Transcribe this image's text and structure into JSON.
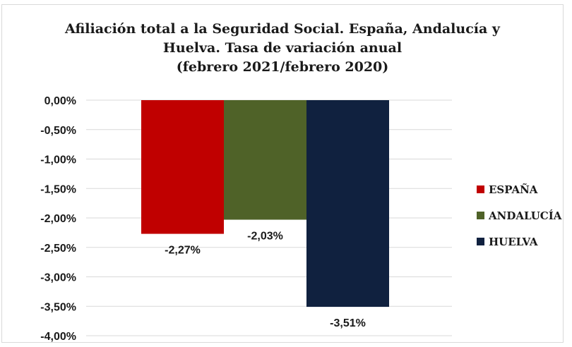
{
  "chart_data": {
    "type": "bar",
    "title_lines": [
      "Afiliación total a la Seguridad Social. España, Andalucía y",
      "Huelva. Tasa de variación anual",
      "(febrero 2021/febrero 2020)"
    ],
    "series": [
      {
        "name": "ESPAÑA",
        "value": -2.27,
        "label": "-2,27%",
        "color": "#c00000"
      },
      {
        "name": "ANDALUCÍA",
        "value": -2.03,
        "label": "-2,03%",
        "color": "#4f6228"
      },
      {
        "name": "HUELVA",
        "value": -3.51,
        "label": "-3,51%",
        "color": "#10213f"
      }
    ],
    "ylim": [
      -4.0,
      0.0
    ],
    "yticks": [
      0.0,
      -0.5,
      -1.0,
      -1.5,
      -2.0,
      -2.5,
      -3.0,
      -3.5,
      -4.0
    ],
    "ytick_labels": [
      "0,00%",
      "-0,50%",
      "-1,00%",
      "-1,50%",
      "-2,00%",
      "-2,50%",
      "-3,00%",
      "-3,50%",
      "-4,00%"
    ],
    "grid": true,
    "legend_position": "right"
  }
}
